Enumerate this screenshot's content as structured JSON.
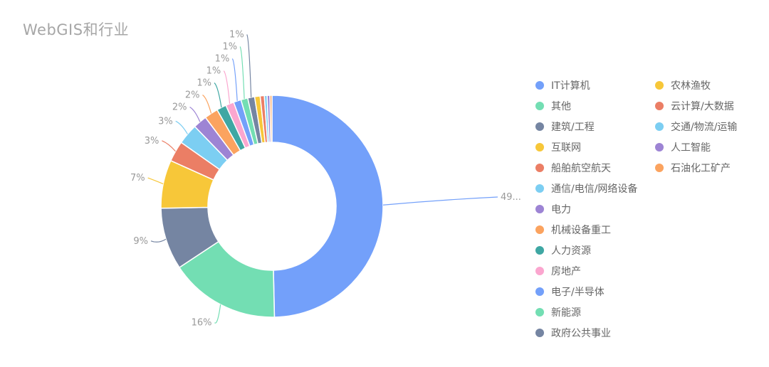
{
  "title": "WebGIS和行业",
  "chart_data": {
    "type": "pie",
    "variant": "donut",
    "title": "WebGIS和行业",
    "legend_position": "right",
    "series": [
      {
        "name": "IT计算机",
        "value": 49.5,
        "label": "49...",
        "color": "#73A0FA"
      },
      {
        "name": "其他",
        "value": 16,
        "label": "16%",
        "color": "#73DEB3"
      },
      {
        "name": "建筑/工程",
        "value": 9,
        "label": "9%",
        "color": "#7585A2"
      },
      {
        "name": "互联网",
        "value": 7,
        "label": "7%",
        "color": "#F7C739"
      },
      {
        "name": "船舶航空航天",
        "value": 3,
        "label": "3%",
        "color": "#EB7E65"
      },
      {
        "name": "通信/电信/网络设备",
        "value": 3,
        "label": "3%",
        "color": "#7CCEF2"
      },
      {
        "name": "电力",
        "value": 2,
        "label": "2%",
        "color": "#9D84D4"
      },
      {
        "name": "机械设备重工",
        "value": 2,
        "label": "2%",
        "color": "#FBA35F"
      },
      {
        "name": "人力资源",
        "value": 1.4,
        "label": "1%",
        "color": "#3FA7A3"
      },
      {
        "name": "房地产",
        "value": 1.2,
        "label": "1%",
        "color": "#FBA6CF"
      },
      {
        "name": "电子/半导体",
        "value": 1.1,
        "label": "1%",
        "color": "#73A0FA"
      },
      {
        "name": "新能源",
        "value": 1,
        "label": "1%",
        "color": "#73DEB3"
      },
      {
        "name": "政府公共事业",
        "value": 1,
        "label": "1%",
        "color": "#7585A2"
      },
      {
        "name": "农林渔牧",
        "value": 0.8,
        "label": "",
        "color": "#F7C739"
      },
      {
        "name": "云计算/大数据",
        "value": 0.6,
        "label": "",
        "color": "#EB7E65"
      },
      {
        "name": "交通/物流/运输",
        "value": 0.4,
        "label": "",
        "color": "#7CCEF2"
      },
      {
        "name": "人工智能",
        "value": 0.4,
        "label": "",
        "color": "#9D84D4"
      },
      {
        "name": "石油化工矿产",
        "value": 0.3,
        "label": "",
        "color": "#FBA35F"
      }
    ],
    "legend_left": [
      "IT计算机",
      "其他",
      "建筑/工程",
      "互联网",
      "船舶航空航天",
      "通信/电信/网络设备",
      "电力",
      "机械设备重工",
      "人力资源",
      "房地产",
      "电子/半导体",
      "新能源",
      "政府公共事业"
    ],
    "legend_right": [
      "农林渔牧",
      "云计算/大数据",
      "交通/物流/运输",
      "人工智能",
      "石油化工矿产"
    ]
  }
}
